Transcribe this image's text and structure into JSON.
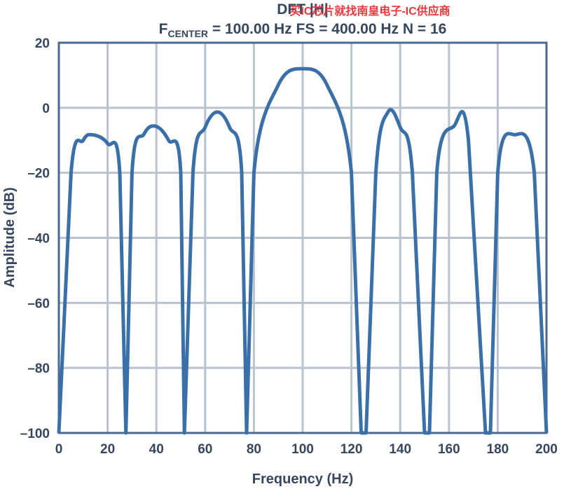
{
  "watermark": "买IC芯片就找南皇电子-IC供应商",
  "chart_data": {
    "type": "line",
    "title": "DFT |H|",
    "subtitle_prefix": "F",
    "subtitle_sub": "CENTER",
    "subtitle_rest": " = 100.00 Hz FS = 400.00 Hz N = 16",
    "xlabel": "Frequency (Hz)",
    "ylabel": "Amplitude (dB)",
    "xlim": [
      0,
      200
    ],
    "ylim": [
      -100,
      20
    ],
    "xticks": [
      0,
      20,
      40,
      60,
      80,
      100,
      120,
      140,
      160,
      180,
      200
    ],
    "yticks": [
      20,
      0,
      -20,
      -40,
      -60,
      -80,
      -100
    ],
    "xtick_labels": [
      "0",
      "20",
      "40",
      "60",
      "80",
      "100",
      "120",
      "140",
      "160",
      "180",
      "200"
    ],
    "ytick_labels": [
      "20",
      "0",
      "–20",
      "–40",
      "–60",
      "–80",
      "–100"
    ],
    "grid": true,
    "line_color": "#3a6fa8",
    "grid_color": "#b9c3cf",
    "frame_color": "#4a6a92",
    "series": [
      {
        "x": [
          0,
          5,
          10,
          13.8,
          20,
          25,
          27.5,
          30,
          35,
          39.8,
          45,
          50,
          51.5,
          55,
          60,
          65,
          70,
          75,
          77,
          80,
          90,
          100,
          110,
          120,
          124,
          126,
          130,
          135,
          140,
          145,
          150,
          152,
          155,
          162,
          168,
          175,
          177,
          180,
          187,
          195,
          200
        ],
        "y": [
          -100,
          -20,
          -10,
          -8.3,
          -11,
          -20,
          -100,
          -20,
          -8,
          -5.7,
          -10,
          -20,
          -100,
          -20,
          -6,
          -1.3,
          -6,
          -20,
          -100,
          -20,
          7,
          12,
          7,
          -20,
          -100,
          -100,
          -20,
          -1.3,
          -6,
          -20,
          -100,
          -100,
          -20,
          -5.7,
          -10,
          -100,
          -100,
          -20,
          -8.3,
          -20,
          -100
        ]
      }
    ]
  }
}
